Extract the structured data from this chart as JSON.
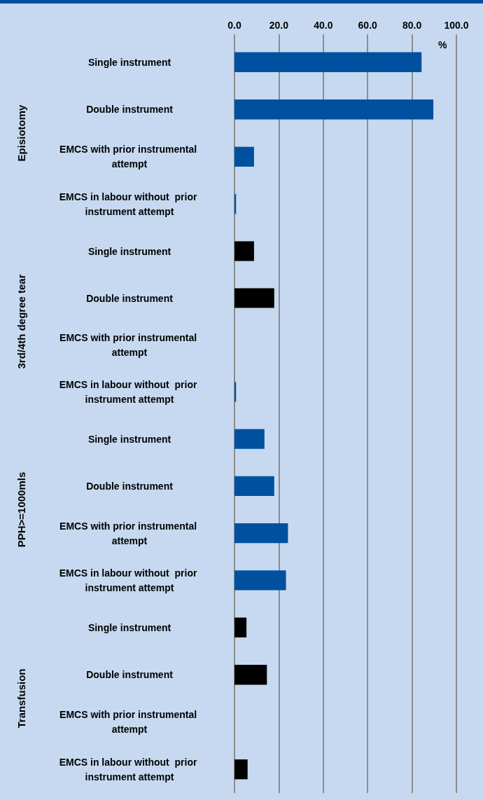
{
  "chart_data": [
    {
      "type": "bar",
      "orientation": "horizontal",
      "title": "Episiotomy",
      "xlabel": "%",
      "categories": [
        "Single instrument",
        "Double instrument",
        "EMCS with prior instrumental attempt",
        "EMCS in labour without  prior instrument attempt"
      ],
      "values": [
        84.3,
        89.6,
        8.8,
        0.7
      ],
      "colors": [
        "#0050a0",
        "#0050a0",
        "#0050a0",
        "#0050a0"
      ],
      "xlim": [
        0,
        100
      ],
      "xticks": [
        {
          "value": 0,
          "label": "0.0"
        },
        {
          "value": 20,
          "label": "20.0"
        },
        {
          "value": 40,
          "label": "40.0"
        },
        {
          "value": 60,
          "label": "60.0"
        },
        {
          "value": 80,
          "label": "80.0"
        },
        {
          "value": 100,
          "label": "100.0"
        }
      ],
      "grid": "x"
    },
    {
      "type": "bar",
      "orientation": "horizontal",
      "title": "3rd/4th degree tear",
      "categories": [
        "Single instrument",
        "Double instrument",
        "EMCS with prior instrumental attempt",
        "EMCS in labour without  prior instrument attempt"
      ],
      "values": [
        8.8,
        17.9,
        null,
        0.7
      ],
      "colors": [
        "#000000",
        "#000000",
        "#000000",
        "#0050a0"
      ],
      "xlim": [
        0,
        100
      ],
      "xticks": [
        {
          "value": 0,
          "label": null
        },
        {
          "value": 20,
          "label": null
        },
        {
          "value": 40,
          "label": null
        },
        {
          "value": 60,
          "label": null
        },
        {
          "value": 80,
          "label": null
        },
        {
          "value": 100,
          "label": null
        }
      ],
      "grid": "x",
      "tick_labels": "y"
    },
    {
      "type": "bar",
      "orientation": "horizontal",
      "title": "PPH>=1000mls",
      "categories": [
        "Single instrument",
        "Double instrument",
        "EMCS with prior instrumental attempt",
        "EMCS in labour without  prior instrument attempt"
      ],
      "values": [
        13.5,
        17.9,
        24.1,
        23.2
      ],
      "colors": [
        "#0050a0",
        "#0050a0",
        "#0050a0",
        "#0050a0"
      ],
      "xlim": [
        0,
        100
      ],
      "xticks": [
        {
          "value": 0,
          "label": null
        },
        {
          "value": 20,
          "label": null
        },
        {
          "value": 40,
          "label": null
        },
        {
          "value": 60,
          "label": null
        },
        {
          "value": 80,
          "label": null
        },
        {
          "value": 100,
          "label": null
        }
      ],
      "grid": "x",
      "tick_labels": "y"
    },
    {
      "type": "bar",
      "orientation": "horizontal",
      "title": "Transfusion",
      "categories": [
        "Single instrument",
        "Double instrument",
        "EMCS with prior instrumental attempt",
        "EMCS in labour without  prior instrument attempt"
      ],
      "values": [
        5.4,
        14.6,
        null,
        5.9
      ],
      "colors": [
        "#000000",
        "#000000",
        "#000000",
        "#000000"
      ],
      "xlim": [
        0,
        100
      ],
      "xticks": [
        {
          "value": 0,
          "label": null
        },
        {
          "value": 20,
          "label": null
        },
        {
          "value": 40,
          "label": null
        },
        {
          "value": 60,
          "label": null
        },
        {
          "value": 80,
          "label": null
        },
        {
          "value": 100,
          "label": null
        }
      ],
      "grid": "x",
      "tick_labels": "y"
    }
  ]
}
